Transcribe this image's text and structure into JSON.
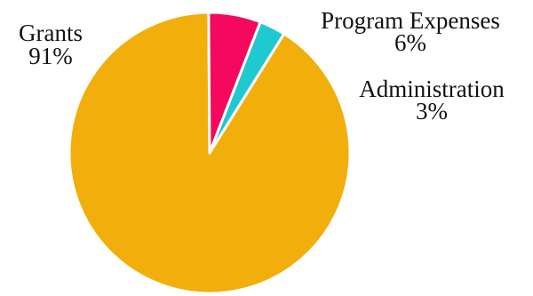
{
  "chart_data": {
    "type": "pie",
    "title": "",
    "start_angle_deg": -58,
    "direction": "clockwise",
    "legend": "none",
    "slices": [
      {
        "label": "Grants",
        "value": 91,
        "value_label": "91%",
        "color": "#f2ae0a"
      },
      {
        "label": "Program Expenses",
        "value": 6,
        "value_label": "6%",
        "color": "#f4095f"
      },
      {
        "label": "Administration",
        "value": 3,
        "value_label": "3%",
        "color": "#20c9cf"
      }
    ]
  }
}
